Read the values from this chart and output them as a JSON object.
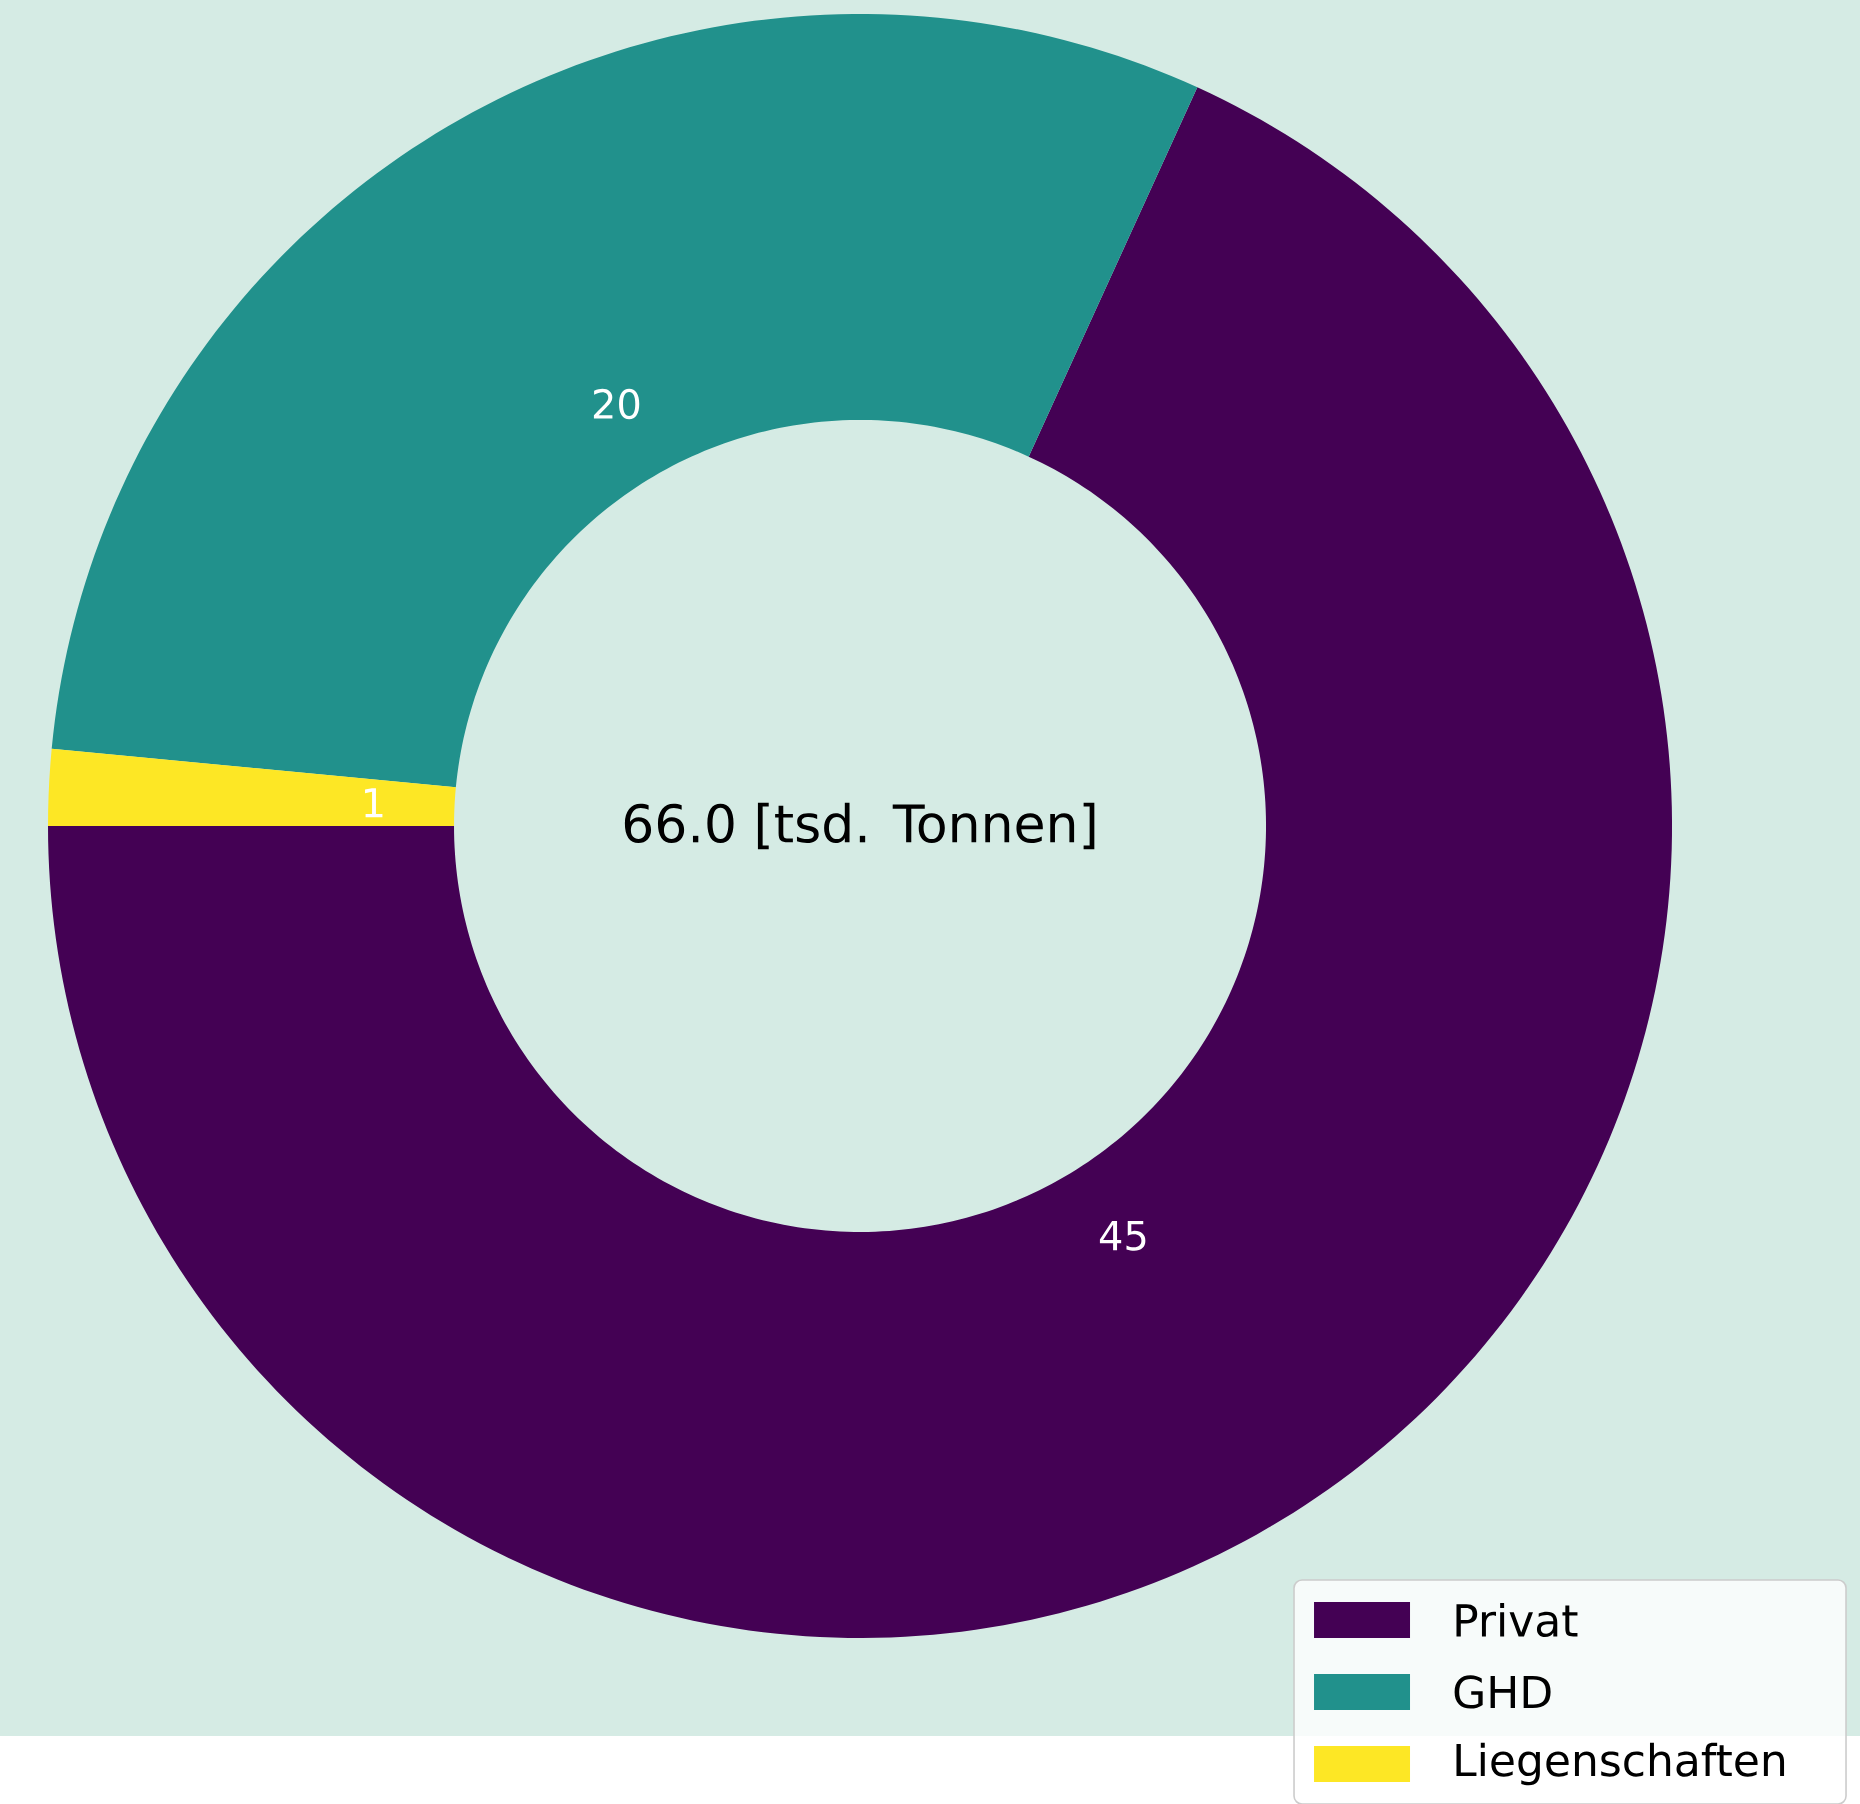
{
  "chart_data": {
    "type": "donut",
    "categories": [
      "Privat",
      "GHD",
      "Liegenschaften"
    ],
    "values": [
      45,
      20,
      1
    ],
    "colors": [
      "#440154",
      "#21918c",
      "#fde725"
    ],
    "data_labels": true,
    "annotations": [
      "66.0 [tsd. Tonnen]"
    ],
    "legend": "bottom right"
  }
}
